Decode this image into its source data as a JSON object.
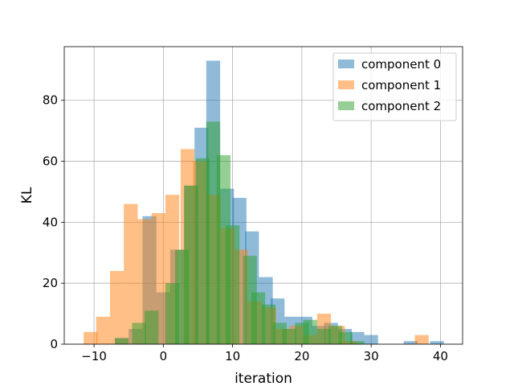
{
  "chart_data": {
    "type": "histogram",
    "xlabel": "iteration",
    "ylabel": "KL",
    "xlim": [
      -14.3,
      43.2
    ],
    "ylim": [
      0,
      97.6
    ],
    "xticks": [
      -10,
      0,
      10,
      20,
      30,
      40
    ],
    "yticks": [
      0,
      20,
      40,
      60,
      80
    ],
    "grid": true,
    "legend_position": "top-right",
    "bin_width": 2.0,
    "series": [
      {
        "name": "component 0",
        "color": "#1f77b4",
        "opacity": 0.5,
        "bins": [
          {
            "x0": -7,
            "count": 2
          },
          {
            "x0": -5,
            "count": 5
          },
          {
            "x0": -3,
            "count": 42
          },
          {
            "x0": -1,
            "count": 17
          },
          {
            "x0": 1,
            "count": 31
          },
          {
            "x0": 3,
            "count": 52
          },
          {
            "x0": 4.5,
            "count": 71
          },
          {
            "x0": 6.2,
            "count": 93
          },
          {
            "x0": 8.2,
            "count": 51
          },
          {
            "x0": 10,
            "count": 48
          },
          {
            "x0": 11.8,
            "count": 37
          },
          {
            "x0": 13.8,
            "count": 22
          },
          {
            "x0": 15.5,
            "count": 15
          },
          {
            "x0": 17.5,
            "count": 9
          },
          {
            "x0": 19.5,
            "count": 9
          },
          {
            "x0": 21.5,
            "count": 6
          },
          {
            "x0": 23.2,
            "count": 7
          },
          {
            "x0": 25.2,
            "count": 5
          },
          {
            "x0": 27,
            "count": 4
          },
          {
            "x0": 29,
            "count": 3
          },
          {
            "x0": 34.7,
            "count": 1
          },
          {
            "x0": 38.5,
            "count": 1
          }
        ]
      },
      {
        "name": "component 1",
        "color": "#ff7f0e",
        "opacity": 0.5,
        "bins": [
          {
            "x0": -11.5,
            "count": 4
          },
          {
            "x0": -9.7,
            "count": 9
          },
          {
            "x0": -7.7,
            "count": 24
          },
          {
            "x0": -5.7,
            "count": 46
          },
          {
            "x0": -3.7,
            "count": 41
          },
          {
            "x0": -1.7,
            "count": 43
          },
          {
            "x0": 0.3,
            "count": 49
          },
          {
            "x0": 2.5,
            "count": 64
          },
          {
            "x0": 4.3,
            "count": 60
          },
          {
            "x0": 6.3,
            "count": 49
          },
          {
            "x0": 8.3,
            "count": 38
          },
          {
            "x0": 10.2,
            "count": 31
          },
          {
            "x0": 12.2,
            "count": 14
          },
          {
            "x0": 14.3,
            "count": 12
          },
          {
            "x0": 16.2,
            "count": 5
          },
          {
            "x0": 18.2,
            "count": 6
          },
          {
            "x0": 20.2,
            "count": 3
          },
          {
            "x0": 22.2,
            "count": 10
          },
          {
            "x0": 24.2,
            "count": 6
          },
          {
            "x0": 26,
            "count": 1
          },
          {
            "x0": 36.3,
            "count": 3
          }
        ]
      },
      {
        "name": "component 2",
        "color": "#2ca02c",
        "opacity": 0.5,
        "bins": [
          {
            "x0": -7,
            "count": 2
          },
          {
            "x0": -4.5,
            "count": 7
          },
          {
            "x0": -2.7,
            "count": 11
          },
          {
            "x0": 0.3,
            "count": 20
          },
          {
            "x0": 1.7,
            "count": 31
          },
          {
            "x0": 3,
            "count": 52
          },
          {
            "x0": 4.7,
            "count": 61
          },
          {
            "x0": 6.2,
            "count": 73
          },
          {
            "x0": 7.7,
            "count": 62
          },
          {
            "x0": 9,
            "count": 39
          },
          {
            "x0": 11.5,
            "count": 29
          },
          {
            "x0": 12.7,
            "count": 17
          },
          {
            "x0": 14.2,
            "count": 13
          },
          {
            "x0": 15.8,
            "count": 7
          },
          {
            "x0": 17.2,
            "count": 5
          },
          {
            "x0": 19,
            "count": 7
          },
          {
            "x0": 20.2,
            "count": 8
          },
          {
            "x0": 22.2,
            "count": 5
          },
          {
            "x0": 23.8,
            "count": 6
          },
          {
            "x0": 25.3,
            "count": 4
          },
          {
            "x0": 27,
            "count": 1
          }
        ]
      }
    ]
  }
}
